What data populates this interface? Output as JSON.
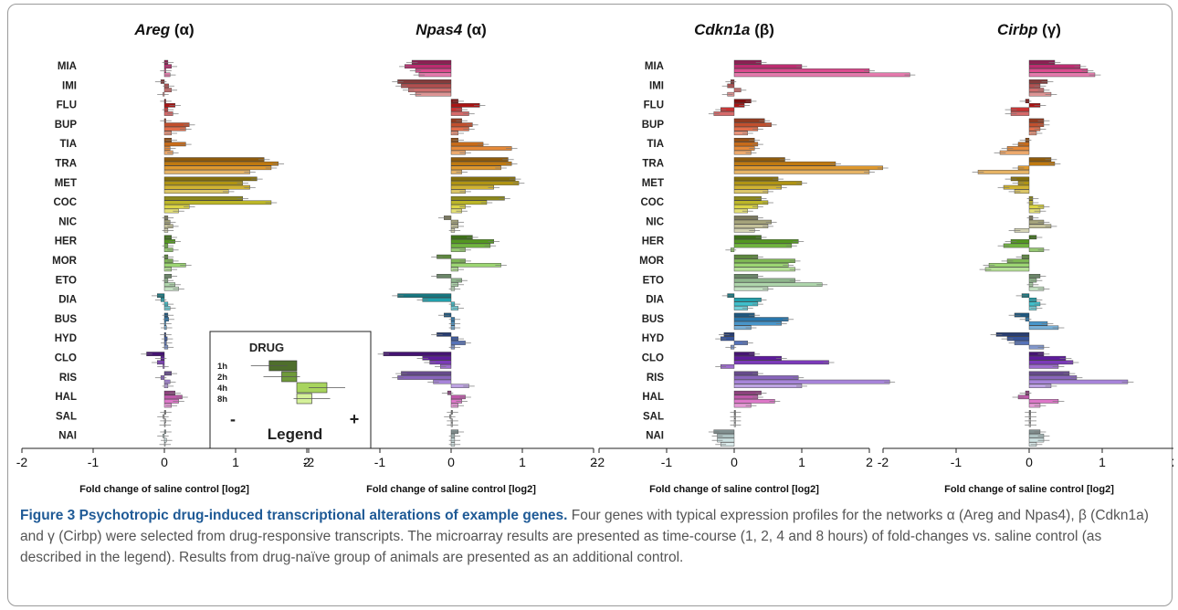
{
  "caption": {
    "title": "Figure 3 Psychotropic drug-induced transcriptional alterations of example genes.",
    "text": "Four genes with typical expression profiles for the networks α (Areg and Npas4), β (Cdkn1a) and γ (Cirbp) were selected from drug-responsive transcripts. The microarray results are presented as time-course (1, 2, 4 and 8 hours) of fold-changes vs. saline control (as described in the legend). Results from drug-naïve group of animals are presented as an additional control."
  },
  "legend": {
    "title": "DRUG",
    "timepoints": [
      "1h",
      "2h",
      "4h",
      "8h"
    ],
    "minus": "-",
    "plus": "+",
    "label": "Legend",
    "example_values": [
      -0.55,
      -0.3,
      0.6,
      0.3
    ],
    "colors": [
      "#4e6e2c",
      "#6f9a3a",
      "#a8d45e",
      "#d5f19a"
    ]
  },
  "chart_data": {
    "type": "bar",
    "orientation": "horizontal",
    "xlabel": "Fold change of saline control [log2]",
    "xlim": [
      -2,
      2
    ],
    "xticks": [
      "-2",
      "-1",
      "0",
      "1",
      "2"
    ],
    "timepoints": [
      "1h",
      "2h",
      "4h",
      "8h"
    ],
    "categories": [
      "MIA",
      "IMI",
      "FLU",
      "BUP",
      "TIA",
      "TRA",
      "MET",
      "COC",
      "NIC",
      "HER",
      "MOR",
      "ETO",
      "DIA",
      "BUS",
      "HYD",
      "CLO",
      "RIS",
      "HAL",
      "SAL",
      "NAI"
    ],
    "category_colors": [
      "#d6327f",
      "#c95a5a",
      "#c01818",
      "#dd5a33",
      "#e27a1e",
      "#d98a12",
      "#c8a816",
      "#d6cf2c",
      "#bcb98c",
      "#5eaa26",
      "#8fd060",
      "#a3cf9f",
      "#25b6c4",
      "#2f86c2",
      "#3f5fae",
      "#6a1fb0",
      "#9b73d4",
      "#d865c0",
      "#bbbbbb",
      "#c6dede"
    ],
    "panels": [
      {
        "gene": "Areg",
        "network": "(α)",
        "values": [
          [
            0.05,
            0.1,
            0.02,
            0.08
          ],
          [
            -0.05,
            0.06,
            0.1,
            -0.02
          ],
          [
            0.02,
            0.15,
            0.05,
            0.12
          ],
          [
            0.02,
            0.35,
            0.3,
            0.1
          ],
          [
            0.1,
            0.3,
            0.08,
            0.12
          ],
          [
            1.4,
            1.6,
            1.5,
            1.2
          ],
          [
            1.3,
            1.1,
            1.2,
            0.9
          ],
          [
            1.1,
            1.5,
            0.35,
            0.2
          ],
          [
            0.05,
            0.08,
            0.12,
            0.05
          ],
          [
            0.1,
            0.15,
            0.05,
            0.12
          ],
          [
            0.05,
            0.12,
            0.3,
            0.1
          ],
          [
            0.1,
            0.05,
            0.15,
            0.2
          ],
          [
            -0.1,
            -0.05,
            0.05,
            0.08
          ],
          [
            0.05,
            0.06,
            0.02,
            0.03
          ],
          [
            0.02,
            0.04,
            0.03,
            0.05
          ],
          [
            -0.25,
            -0.05,
            -0.1,
            -0.02
          ],
          [
            0.1,
            -0.05,
            0.08,
            0.05
          ],
          [
            0.15,
            0.25,
            0.2,
            0.1
          ],
          [
            0.02,
            -0.02,
            0.02,
            0.01
          ],
          [
            0.02,
            -0.02,
            0.03,
            0.01
          ]
        ]
      },
      {
        "gene": "Npas4",
        "network": "(α)",
        "values": [
          [
            -0.55,
            -0.65,
            -0.5,
            -0.45
          ],
          [
            -0.75,
            -0.7,
            -0.6,
            -0.5
          ],
          [
            0.1,
            0.4,
            0.15,
            0.25
          ],
          [
            0.15,
            0.3,
            0.25,
            0.1
          ],
          [
            0.1,
            0.45,
            0.85,
            0.2
          ],
          [
            0.8,
            0.85,
            0.7,
            0.15
          ],
          [
            0.9,
            0.95,
            0.6,
            0.2
          ],
          [
            0.75,
            0.5,
            0.2,
            0.15
          ],
          [
            -0.1,
            0.1,
            0.1,
            0.05
          ],
          [
            0.3,
            0.6,
            0.55,
            0.2
          ],
          [
            -0.2,
            0.2,
            0.7,
            0.1
          ],
          [
            -0.2,
            0.15,
            0.1,
            0.05
          ],
          [
            -0.75,
            -0.4,
            0.05,
            0.1
          ],
          [
            -0.1,
            0.05,
            0.05,
            0.05
          ],
          [
            -0.2,
            0.1,
            0.2,
            0.05
          ],
          [
            -0.95,
            -0.4,
            -0.3,
            -0.15
          ],
          [
            -0.7,
            -0.75,
            -0.25,
            0.25
          ],
          [
            -0.05,
            0.2,
            0.15,
            0.1
          ],
          [
            0.02,
            -0.02,
            0.02,
            0.02
          ],
          [
            0.1,
            0.05,
            0.05,
            0.05
          ]
        ]
      },
      {
        "gene": "Cdkn1a",
        "network": "(β)",
        "values": [
          [
            0.4,
            1.0,
            2.0,
            2.6
          ],
          [
            -0.05,
            -0.1,
            0.1,
            -0.1
          ],
          [
            0.25,
            0.15,
            -0.2,
            -0.3
          ],
          [
            0.45,
            0.55,
            0.35,
            0.2
          ],
          [
            0.3,
            0.35,
            0.3,
            0.25
          ],
          [
            0.75,
            1.5,
            2.2,
            2.0
          ],
          [
            0.65,
            1.0,
            0.7,
            0.5
          ],
          [
            0.4,
            0.5,
            0.35,
            0.2
          ],
          [
            0.35,
            0.55,
            0.5,
            0.3
          ],
          [
            0.4,
            0.95,
            0.85,
            -0.05
          ],
          [
            0.35,
            0.9,
            0.8,
            0.9
          ],
          [
            0.35,
            0.9,
            1.3,
            0.5
          ],
          [
            -0.1,
            0.4,
            0.35,
            0.2
          ],
          [
            0.3,
            0.8,
            0.7,
            0.25
          ],
          [
            -0.15,
            -0.2,
            0.2,
            -0.05
          ],
          [
            0.3,
            0.7,
            1.4,
            -0.2
          ],
          [
            0.35,
            0.95,
            2.3,
            1.0
          ],
          [
            0.4,
            0.35,
            0.6,
            0.25
          ],
          [
            0.02,
            0.02,
            0.02,
            0.02
          ],
          [
            -0.3,
            -0.25,
            -0.25,
            -0.2
          ]
        ]
      },
      {
        "gene": "Cirbp",
        "network": "(γ)",
        "values": [
          [
            0.35,
            0.7,
            0.8,
            0.9
          ],
          [
            0.25,
            0.15,
            0.2,
            0.3
          ],
          [
            -0.05,
            0.15,
            -0.25,
            -0.25
          ],
          [
            0.2,
            0.2,
            0.15,
            0.1
          ],
          [
            -0.05,
            -0.15,
            -0.3,
            -0.4
          ],
          [
            0.3,
            0.35,
            -0.15,
            -0.7
          ],
          [
            -0.25,
            -0.15,
            -0.35,
            -0.2
          ],
          [
            0.05,
            0.05,
            0.2,
            0.15
          ],
          [
            0.05,
            0.2,
            0.3,
            -0.2
          ],
          [
            0.1,
            -0.25,
            -0.35,
            0.2
          ],
          [
            -0.1,
            -0.3,
            -0.55,
            -0.6
          ],
          [
            0.15,
            0.1,
            0.05,
            0.2
          ],
          [
            -0.1,
            0.1,
            0.15,
            0.1
          ],
          [
            -0.2,
            -0.05,
            0.25,
            0.4
          ],
          [
            -0.45,
            -0.3,
            -0.2,
            0.2
          ],
          [
            0.2,
            0.5,
            0.6,
            0.4
          ],
          [
            0.55,
            0.65,
            1.35,
            0.3
          ],
          [
            -0.05,
            -0.15,
            0.4,
            0.15
          ],
          [
            0.02,
            0.02,
            0.02,
            0.02
          ],
          [
            0.15,
            0.2,
            0.2,
            0.1
          ]
        ]
      }
    ]
  }
}
